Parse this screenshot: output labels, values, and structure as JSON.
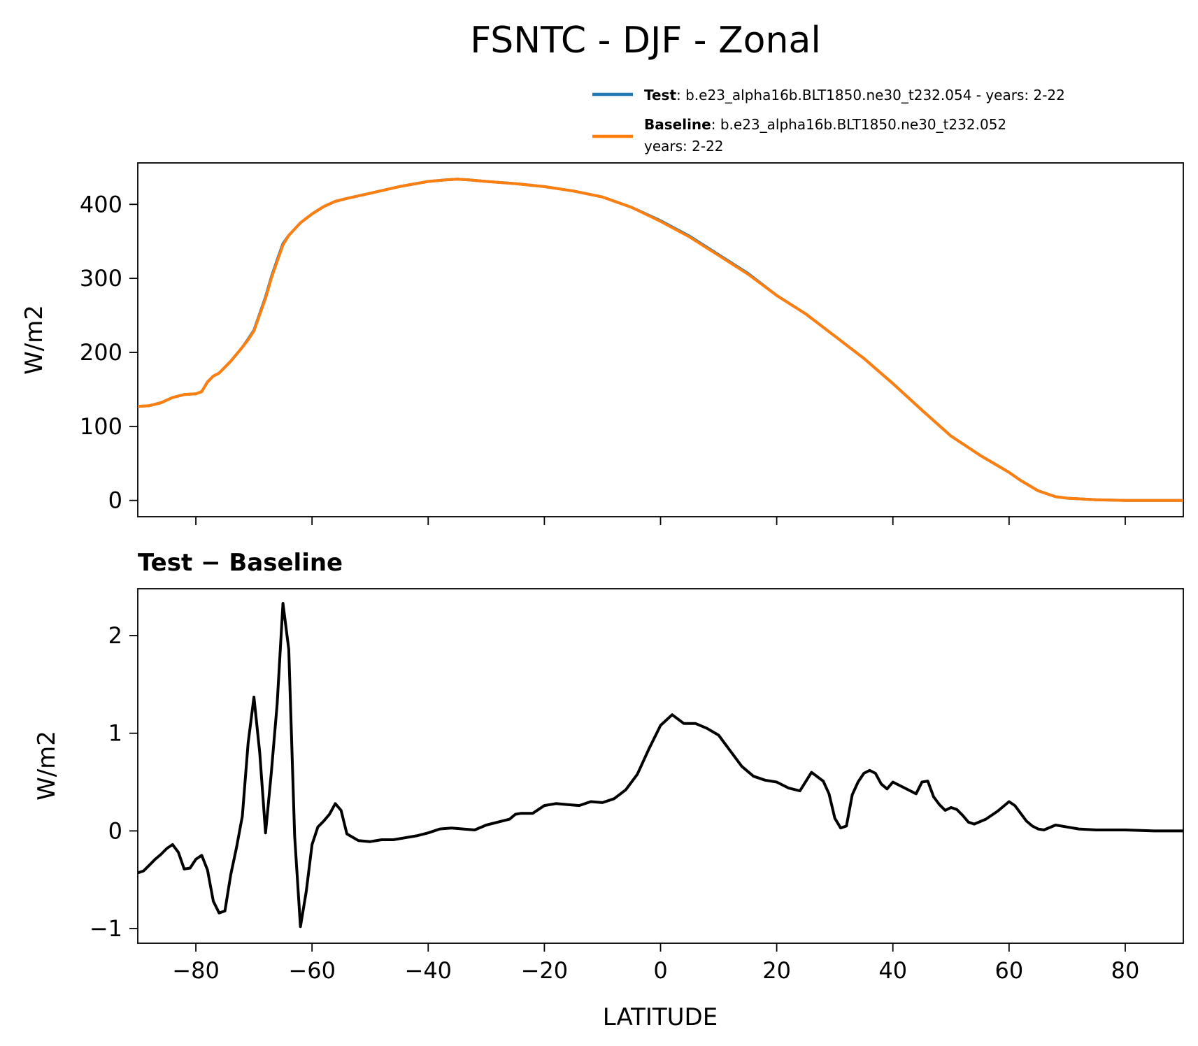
{
  "figure": {
    "title": "FSNTC - DJF - Zonal"
  },
  "legend": {
    "entries": [
      {
        "label_bold": "Test",
        "label_text": ": b.e23_alpha16b.BLT1850.ne30_t232.054 - years: 2-22",
        "label_text2": "",
        "color": "#1f77b4"
      },
      {
        "label_bold": "Baseline",
        "label_text": ": b.e23_alpha16b.BLT1850.ne30_t232.052",
        "label_text2": "years: 2-22",
        "color": "#ff7f0e"
      }
    ]
  },
  "chart_data": [
    {
      "type": "line",
      "ylabel": "W/m2",
      "xlim": [
        -90,
        90
      ],
      "ylim": [
        -22,
        456
      ],
      "yticks": [
        0,
        100,
        200,
        300,
        400
      ],
      "xticks": [
        -80,
        -60,
        -40,
        -20,
        0,
        20,
        40,
        60,
        80
      ],
      "series": [
        {
          "name": "Test",
          "color": "#1f77b4",
          "x": [
            -90,
            -88,
            -86,
            -84,
            -82,
            -80,
            -79,
            -78,
            -77,
            -76,
            -74,
            -72,
            -71,
            -70,
            -68,
            -67,
            -66,
            -65,
            -64,
            -62,
            -60,
            -58,
            -56,
            -54,
            -50,
            -45,
            -40,
            -37,
            -35,
            -33,
            -30,
            -25,
            -20,
            -15,
            -10,
            -5,
            0,
            5,
            10,
            15,
            20,
            25,
            30,
            35,
            40,
            45,
            50,
            55,
            60,
            62,
            65,
            68,
            70,
            75,
            80,
            85,
            90
          ],
          "values": [
            127,
            128,
            132,
            139,
            143,
            144,
            147,
            160,
            168,
            172,
            188,
            207,
            218,
            230,
            275,
            302,
            325,
            347,
            358,
            375,
            387,
            397,
            404,
            408,
            415,
            424,
            431,
            433,
            434,
            433,
            431,
            428,
            424,
            418,
            410,
            396,
            378,
            357,
            332,
            307,
            277,
            252,
            222,
            192,
            158,
            122,
            87,
            61,
            38,
            27,
            13,
            5,
            3,
            1,
            0,
            0,
            0
          ]
        },
        {
          "name": "Baseline",
          "color": "#ff7f0e",
          "x": [
            -90,
            -88,
            -86,
            -84,
            -82,
            -80,
            -79,
            -78,
            -77,
            -76,
            -74,
            -72,
            -71,
            -70,
            -68,
            -67,
            -66,
            -65,
            -64,
            -62,
            -60,
            -58,
            -56,
            -54,
            -50,
            -45,
            -40,
            -37,
            -35,
            -33,
            -30,
            -25,
            -20,
            -15,
            -10,
            -5,
            0,
            5,
            10,
            15,
            20,
            25,
            30,
            35,
            40,
            45,
            50,
            55,
            60,
            62,
            65,
            68,
            70,
            75,
            80,
            85,
            90
          ],
          "values": [
            127,
            128,
            132,
            139,
            143,
            144,
            147,
            160,
            168,
            172,
            188,
            207,
            217,
            229,
            273,
            300,
            323,
            345,
            358,
            375,
            387,
            397,
            404,
            408,
            415,
            424,
            431,
            433,
            434,
            433,
            431,
            428,
            424,
            418,
            410,
            396,
            377,
            356,
            331,
            306,
            277,
            252,
            222,
            192,
            158,
            122,
            87,
            61,
            38,
            27,
            13,
            5,
            3,
            1,
            0,
            0,
            0
          ]
        }
      ]
    },
    {
      "type": "line",
      "title": "Test − Baseline",
      "xlabel": "LATITUDE",
      "ylabel": "W/m2",
      "xlim": [
        -90,
        90
      ],
      "ylim": [
        -1.15,
        2.48
      ],
      "yticks": [
        -1,
        0,
        1,
        2
      ],
      "xticks": [
        -80,
        -60,
        -40,
        -20,
        0,
        20,
        40,
        60,
        80
      ],
      "xtick_labels": [
        "−80",
        "−60",
        "−40",
        "−20",
        "0",
        "20",
        "40",
        "60",
        "80"
      ],
      "ytick_labels": [
        "−1",
        "0",
        "1",
        "2"
      ],
      "series": [
        {
          "name": "",
          "color": "#000000",
          "x": [
            -90,
            -89,
            -88,
            -87,
            -86,
            -85,
            -84,
            -83,
            -82,
            -81,
            -80,
            -79,
            -78,
            -77,
            -76,
            -75,
            -74,
            -73,
            -72,
            -71,
            -70,
            -69,
            -68,
            -67,
            -66,
            -65,
            -64,
            -63,
            -62,
            -61,
            -60,
            -59,
            -58,
            -57,
            -56,
            -55,
            -54,
            -52,
            -50,
            -48,
            -46,
            -44,
            -42,
            -40,
            -38,
            -36,
            -34,
            -32,
            -30,
            -28,
            -26,
            -25,
            -24,
            -22,
            -20,
            -18,
            -16,
            -14,
            -12,
            -10,
            -8,
            -6,
            -4,
            -2,
            0,
            2,
            4,
            6,
            8,
            10,
            12,
            14,
            16,
            18,
            20,
            22,
            24,
            26,
            28,
            29,
            30,
            31,
            32,
            33,
            34,
            35,
            36,
            37,
            38,
            39,
            40,
            42,
            44,
            45,
            46,
            47,
            48,
            49,
            50,
            51,
            52,
            53,
            54,
            56,
            58,
            59,
            60,
            61,
            62,
            63,
            64,
            65,
            66,
            68,
            70,
            72,
            75,
            80,
            85,
            90
          ],
          "values": [
            -0.43,
            -0.41,
            -0.35,
            -0.29,
            -0.24,
            -0.18,
            -0.14,
            -0.22,
            -0.39,
            -0.38,
            -0.29,
            -0.25,
            -0.4,
            -0.72,
            -0.84,
            -0.82,
            -0.45,
            -0.17,
            0.15,
            0.9,
            1.37,
            0.8,
            -0.02,
            0.6,
            1.3,
            2.33,
            1.86,
            -0.05,
            -0.98,
            -0.62,
            -0.14,
            0.04,
            0.1,
            0.17,
            0.28,
            0.21,
            -0.03,
            -0.1,
            -0.11,
            -0.09,
            -0.09,
            -0.07,
            -0.05,
            -0.02,
            0.02,
            0.03,
            0.02,
            0.01,
            0.06,
            0.09,
            0.12,
            0.17,
            0.18,
            0.18,
            0.26,
            0.28,
            0.27,
            0.26,
            0.3,
            0.29,
            0.33,
            0.42,
            0.58,
            0.84,
            1.08,
            1.19,
            1.1,
            1.1,
            1.05,
            0.98,
            0.82,
            0.66,
            0.56,
            0.52,
            0.5,
            0.44,
            0.41,
            0.6,
            0.51,
            0.38,
            0.13,
            0.03,
            0.05,
            0.37,
            0.5,
            0.59,
            0.62,
            0.59,
            0.48,
            0.43,
            0.5,
            0.44,
            0.38,
            0.5,
            0.51,
            0.35,
            0.27,
            0.21,
            0.24,
            0.22,
            0.16,
            0.09,
            0.07,
            0.12,
            0.2,
            0.25,
            0.3,
            0.26,
            0.18,
            0.1,
            0.05,
            0.02,
            0.01,
            0.06,
            0.04,
            0.02,
            0.01,
            0.01,
            0,
            0
          ]
        }
      ]
    }
  ]
}
